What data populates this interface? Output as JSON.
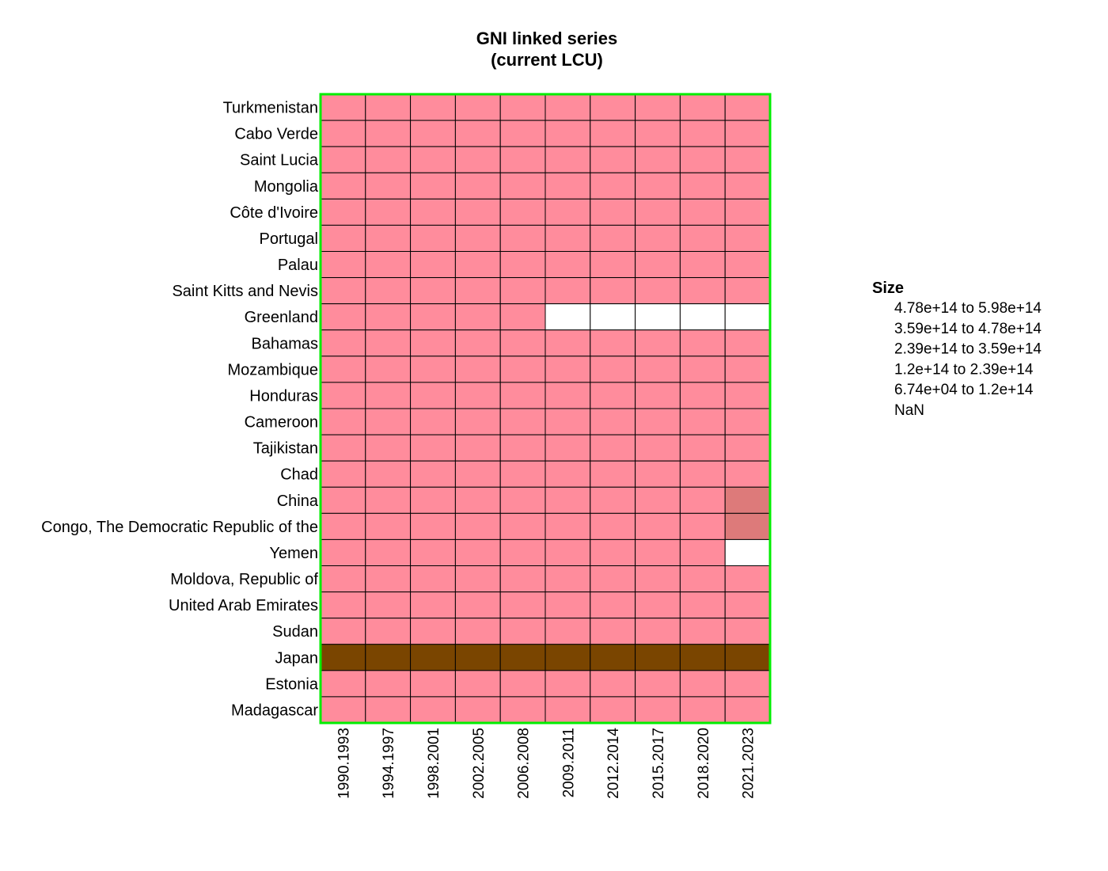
{
  "chart_data": {
    "type": "heatmap",
    "title": [
      "GNI linked series",
      "(current LCU)"
    ],
    "x_categories": [
      "1990.1993",
      "1994.1997",
      "1998.2001",
      "2002.2005",
      "2006.2008",
      "2009.2011",
      "2012.2014",
      "2015.2017",
      "2018.2020",
      "2021.2023"
    ],
    "y_categories": [
      "Turkmenistan",
      "Cabo Verde",
      "Saint Lucia",
      "Mongolia",
      "Côte d'Ivoire",
      "Portugal",
      "Palau",
      "Saint Kitts and Nevis",
      "Greenland",
      "Bahamas",
      "Mozambique",
      "Honduras",
      "Cameroon",
      "Tajikistan",
      "Chad",
      "China",
      "Congo, The Democratic Republic of the",
      "Yemen",
      "Moldova, Republic of",
      "United Arab Emirates",
      "Sudan",
      "Japan",
      "Estonia",
      "Madagascar"
    ],
    "bins": [
      {
        "label": "4.78e+14  to  5.98e+14",
        "color": "#7a4500"
      },
      {
        "label": "3.59e+14  to  4.78e+14",
        "color": "#9a5a20"
      },
      {
        "label": "2.39e+14  to  3.59e+14",
        "color": "#b86a40"
      },
      {
        "label": "1.2e+14  to  2.39e+14",
        "color": "#dd7a7a"
      },
      {
        "label": "6.74e+04  to  1.2e+14",
        "color": "#ff8c9c"
      },
      {
        "label": "NaN",
        "color": "#ffffff"
      }
    ],
    "cell_bins": [
      [
        4,
        4,
        4,
        4,
        4,
        4,
        4,
        4,
        4,
        4
      ],
      [
        4,
        4,
        4,
        4,
        4,
        4,
        4,
        4,
        4,
        4
      ],
      [
        4,
        4,
        4,
        4,
        4,
        4,
        4,
        4,
        4,
        4
      ],
      [
        4,
        4,
        4,
        4,
        4,
        4,
        4,
        4,
        4,
        4
      ],
      [
        4,
        4,
        4,
        4,
        4,
        4,
        4,
        4,
        4,
        4
      ],
      [
        4,
        4,
        4,
        4,
        4,
        4,
        4,
        4,
        4,
        4
      ],
      [
        4,
        4,
        4,
        4,
        4,
        4,
        4,
        4,
        4,
        4
      ],
      [
        4,
        4,
        4,
        4,
        4,
        4,
        4,
        4,
        4,
        4
      ],
      [
        4,
        4,
        4,
        4,
        4,
        5,
        5,
        5,
        5,
        5
      ],
      [
        4,
        4,
        4,
        4,
        4,
        4,
        4,
        4,
        4,
        4
      ],
      [
        4,
        4,
        4,
        4,
        4,
        4,
        4,
        4,
        4,
        4
      ],
      [
        4,
        4,
        4,
        4,
        4,
        4,
        4,
        4,
        4,
        4
      ],
      [
        4,
        4,
        4,
        4,
        4,
        4,
        4,
        4,
        4,
        4
      ],
      [
        4,
        4,
        4,
        4,
        4,
        4,
        4,
        4,
        4,
        4
      ],
      [
        4,
        4,
        4,
        4,
        4,
        4,
        4,
        4,
        4,
        4
      ],
      [
        4,
        4,
        4,
        4,
        4,
        4,
        4,
        4,
        4,
        3
      ],
      [
        4,
        4,
        4,
        4,
        4,
        4,
        4,
        4,
        4,
        3
      ],
      [
        4,
        4,
        4,
        4,
        4,
        4,
        4,
        4,
        4,
        5
      ],
      [
        4,
        4,
        4,
        4,
        4,
        4,
        4,
        4,
        4,
        4
      ],
      [
        4,
        4,
        4,
        4,
        4,
        4,
        4,
        4,
        4,
        4
      ],
      [
        4,
        4,
        4,
        4,
        4,
        4,
        4,
        4,
        4,
        4
      ],
      [
        0,
        0,
        0,
        0,
        0,
        0,
        0,
        0,
        0,
        0
      ],
      [
        4,
        4,
        4,
        4,
        4,
        4,
        4,
        4,
        4,
        4
      ],
      [
        4,
        4,
        4,
        4,
        4,
        4,
        4,
        4,
        4,
        4
      ]
    ],
    "legend_title": "Size",
    "legend_position": "right",
    "frame_color": "#00ee00",
    "grid_color": "#000000"
  }
}
